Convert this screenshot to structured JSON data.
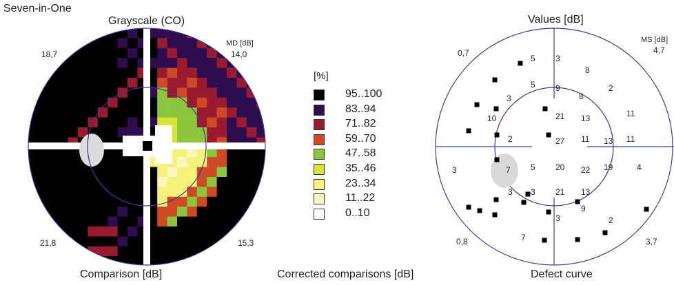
{
  "header": {
    "title": "Seven-in-One"
  },
  "grayscale": {
    "title": "Grayscale (CO)",
    "md_label": "MD [dB]",
    "quadrants": {
      "tl": "18,7",
      "tr": "14,0",
      "bl": "21,8",
      "br": "15,3"
    }
  },
  "legend": {
    "title": "[%]",
    "items": [
      {
        "label": "95..100",
        "color": "#000000"
      },
      {
        "label": "83..94",
        "color": "#2e0d4e"
      },
      {
        "label": "71..82",
        "color": "#9a1b30"
      },
      {
        "label": "59..70",
        "color": "#cf4a24"
      },
      {
        "label": "47..58",
        "color": "#8cc63c"
      },
      {
        "label": "35..46",
        "color": "#d9e336"
      },
      {
        "label": "23..34",
        "color": "#f5f27a"
      },
      {
        "label": "11..22",
        "color": "#fbf6bf"
      },
      {
        "label": "0..10",
        "color": "#ffffff"
      }
    ]
  },
  "values": {
    "title": "Values [dB]",
    "ms_label": "MS [dB]",
    "quadrants": {
      "tl": "0,7",
      "tr": "4,7",
      "bl": "0,8",
      "br": "3,7"
    },
    "cells": [
      {
        "t": "5",
        "x": 770,
        "y": 78
      },
      {
        "t": "3",
        "x": 806,
        "y": 78
      },
      {
        "t": "8",
        "x": 849,
        "y": 95
      },
      {
        "t": "5",
        "x": 770,
        "y": 116
      },
      {
        "t": "9",
        "x": 806,
        "y": 121
      },
      {
        "t": "8",
        "x": 840,
        "y": 133
      },
      {
        "t": "2",
        "x": 883,
        "y": 121
      },
      {
        "t": "3",
        "x": 735,
        "y": 136
      },
      {
        "t": "10",
        "x": 707,
        "y": 165
      },
      {
        "t": "21",
        "x": 806,
        "y": 162
      },
      {
        "t": "13",
        "x": 843,
        "y": 165
      },
      {
        "t": "11",
        "x": 909,
        "y": 158
      },
      {
        "t": "2",
        "x": 737,
        "y": 195
      },
      {
        "t": "27",
        "x": 806,
        "y": 198
      },
      {
        "t": "11",
        "x": 843,
        "y": 195
      },
      {
        "t": "13",
        "x": 876,
        "y": 198
      },
      {
        "t": "11",
        "x": 909,
        "y": 195
      },
      {
        "t": "3",
        "x": 656,
        "y": 240
      },
      {
        "t": "7",
        "x": 734,
        "y": 240
      },
      {
        "t": "5",
        "x": 770,
        "y": 236
      },
      {
        "t": "20",
        "x": 806,
        "y": 236
      },
      {
        "t": "22",
        "x": 843,
        "y": 240
      },
      {
        "t": "19",
        "x": 876,
        "y": 236
      },
      {
        "t": "4",
        "x": 924,
        "y": 236
      },
      {
        "t": "3",
        "x": 737,
        "y": 272
      },
      {
        "t": "3",
        "x": 770,
        "y": 272
      },
      {
        "t": "21",
        "x": 806,
        "y": 272
      },
      {
        "t": "13",
        "x": 843,
        "y": 272
      },
      {
        "t": "9",
        "x": 843,
        "y": 296
      },
      {
        "t": "3",
        "x": 806,
        "y": 310
      },
      {
        "t": "2",
        "x": 883,
        "y": 313
      },
      {
        "t": "7",
        "x": 756,
        "y": 338
      }
    ]
  },
  "captions": {
    "comparison": "Comparison [dB]",
    "corrected": "Corrected comparisons [dB]",
    "defect": "Defect curve"
  }
}
